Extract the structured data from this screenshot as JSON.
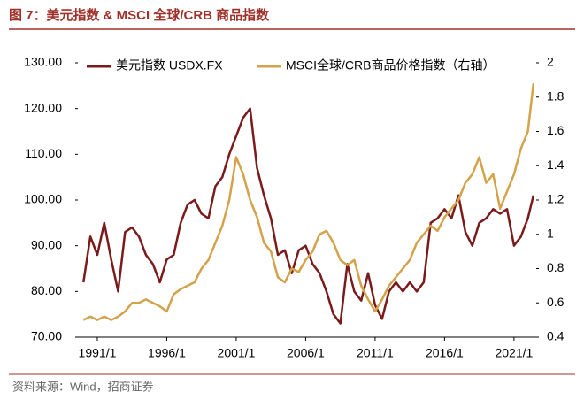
{
  "chart_data": {
    "type": "line",
    "title": "图 7：美元指数 & MSCI 全球/CRB 商品指数",
    "source": "资料来源：Wind，招商证券",
    "x": [
      1990,
      1990.5,
      1991,
      1991.5,
      1992,
      1992.5,
      1993,
      1993.5,
      1994,
      1994.5,
      1995,
      1995.5,
      1996,
      1996.5,
      1997,
      1997.5,
      1998,
      1998.5,
      1999,
      1999.5,
      2000,
      2000.5,
      2001,
      2001.5,
      2002,
      2002.5,
      2003,
      2003.5,
      2004,
      2004.5,
      2005,
      2005.5,
      2006,
      2006.5,
      2007,
      2007.5,
      2008,
      2008.5,
      2009,
      2009.5,
      2010,
      2010.5,
      2011,
      2011.5,
      2012,
      2012.5,
      2013,
      2013.5,
      2014,
      2014.5,
      2015,
      2015.5,
      2016,
      2016.5,
      2017,
      2017.5,
      2018,
      2018.5,
      2019,
      2019.5,
      2020,
      2020.5,
      2021,
      2021.5,
      2022,
      2022.4
    ],
    "series": [
      {
        "name": "美元指数 USDX.FX",
        "color": "#7b1a1a",
        "axis": "y",
        "values": [
          82,
          92,
          88,
          95,
          87,
          80,
          93,
          94,
          92,
          88,
          86,
          82,
          87,
          88,
          95,
          99,
          100,
          97,
          96,
          103,
          105,
          110,
          114,
          118,
          120,
          107,
          101,
          96,
          88,
          89,
          84,
          89,
          90,
          86,
          84,
          80,
          75,
          73,
          86,
          80,
          78,
          84,
          77,
          74,
          80,
          82,
          80,
          82,
          80,
          82,
          95,
          96,
          98,
          96,
          101,
          93,
          90,
          95,
          96,
          98,
          97,
          98,
          90,
          92,
          96,
          101
        ]
      },
      {
        "name": "MSCI全球/CRB商品价格指数（右轴）",
        "color": "#d4a24a",
        "axis": "y2",
        "values": [
          0.5,
          0.52,
          0.5,
          0.52,
          0.5,
          0.52,
          0.55,
          0.6,
          0.6,
          0.62,
          0.6,
          0.58,
          0.55,
          0.65,
          0.68,
          0.7,
          0.72,
          0.8,
          0.85,
          0.95,
          1.05,
          1.2,
          1.45,
          1.35,
          1.2,
          1.1,
          0.95,
          0.9,
          0.75,
          0.72,
          0.8,
          0.78,
          0.85,
          0.9,
          1.0,
          1.02,
          0.95,
          0.85,
          0.82,
          0.85,
          0.7,
          0.62,
          0.55,
          0.62,
          0.7,
          0.75,
          0.8,
          0.85,
          0.95,
          1.0,
          1.05,
          1.02,
          1.1,
          1.15,
          1.2,
          1.3,
          1.35,
          1.45,
          1.3,
          1.35,
          1.15,
          1.25,
          1.35,
          1.5,
          1.6,
          1.88
        ]
      }
    ],
    "xlim": [
      1989.6,
      2022.6
    ],
    "xticks": [
      {
        "value": 1991,
        "label": "1991/1"
      },
      {
        "value": 1996,
        "label": "1996/1"
      },
      {
        "value": 2001,
        "label": "2001/1"
      },
      {
        "value": 2006,
        "label": "2006/1"
      },
      {
        "value": 2011,
        "label": "2011/1"
      },
      {
        "value": 2016,
        "label": "2016/1"
      },
      {
        "value": 2021,
        "label": "2021/1"
      }
    ],
    "ylim": [
      70,
      130
    ],
    "yticks": [
      {
        "value": 70,
        "label": "70.00"
      },
      {
        "value": 80,
        "label": "80.00"
      },
      {
        "value": 90,
        "label": "90.00"
      },
      {
        "value": 100,
        "label": "100.00"
      },
      {
        "value": 110,
        "label": "110.00"
      },
      {
        "value": 120,
        "label": "120.00"
      },
      {
        "value": 130,
        "label": "130.00"
      }
    ],
    "y2lim": [
      0.4,
      2
    ],
    "y2ticks": [
      0.4,
      0.6,
      0.8,
      1,
      1.2,
      1.4,
      1.6,
      1.8,
      2
    ],
    "grid": false
  }
}
